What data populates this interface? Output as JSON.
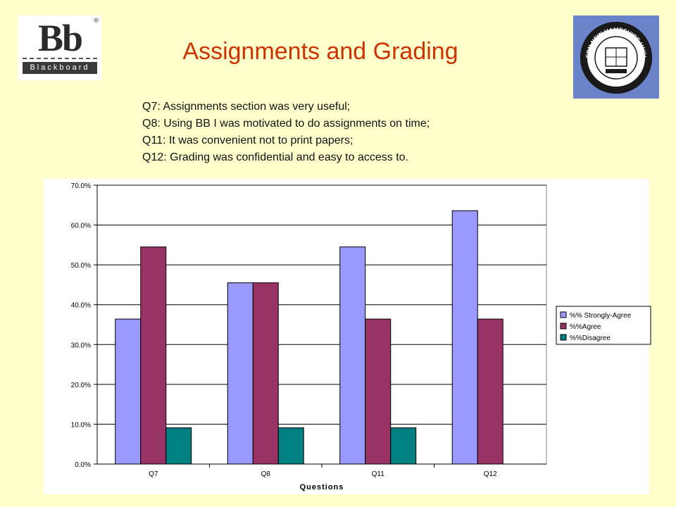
{
  "header": {
    "title": "Assignments and Grading",
    "logo_left": {
      "text": "Blackboard",
      "icon": "blackboard-logo"
    },
    "logo_right": {
      "text": "SOUTHERN NEW HAMPSHIRE UNIVERSITY",
      "icon": "snhu-seal-logo"
    }
  },
  "questions": [
    "Q7: Assignments section was very useful;",
    "Q8: Using BB I was motivated to do assignments on time;",
    "Q11: It was convenient not to print papers;",
    "Q12: Grading was confidential and easy to access to."
  ],
  "colors": {
    "background": "#ffffcc",
    "title": "#cc3300",
    "series": [
      "#9999ff",
      "#993366",
      "#008080"
    ]
  },
  "chart_data": {
    "type": "bar",
    "categories": [
      "Q7",
      "Q8",
      "Q11",
      "Q12"
    ],
    "series": [
      {
        "name": "%% Strongly-Agree",
        "values": [
          36.4,
          45.5,
          54.5,
          63.6
        ]
      },
      {
        "name": "%%Agree",
        "values": [
          54.5,
          45.5,
          36.4,
          36.4
        ]
      },
      {
        "name": "%%Disagree",
        "values": [
          9.1,
          9.1,
          9.1,
          0
        ]
      }
    ],
    "xlabel": "Questions",
    "ylabel": "",
    "ylim": [
      0,
      70
    ],
    "yticks": [
      "0.0%",
      "10.0%",
      "20.0%",
      "30.0%",
      "40.0%",
      "50.0%",
      "60.0%",
      "70.0%"
    ],
    "grid": true,
    "legend_position": "right"
  }
}
